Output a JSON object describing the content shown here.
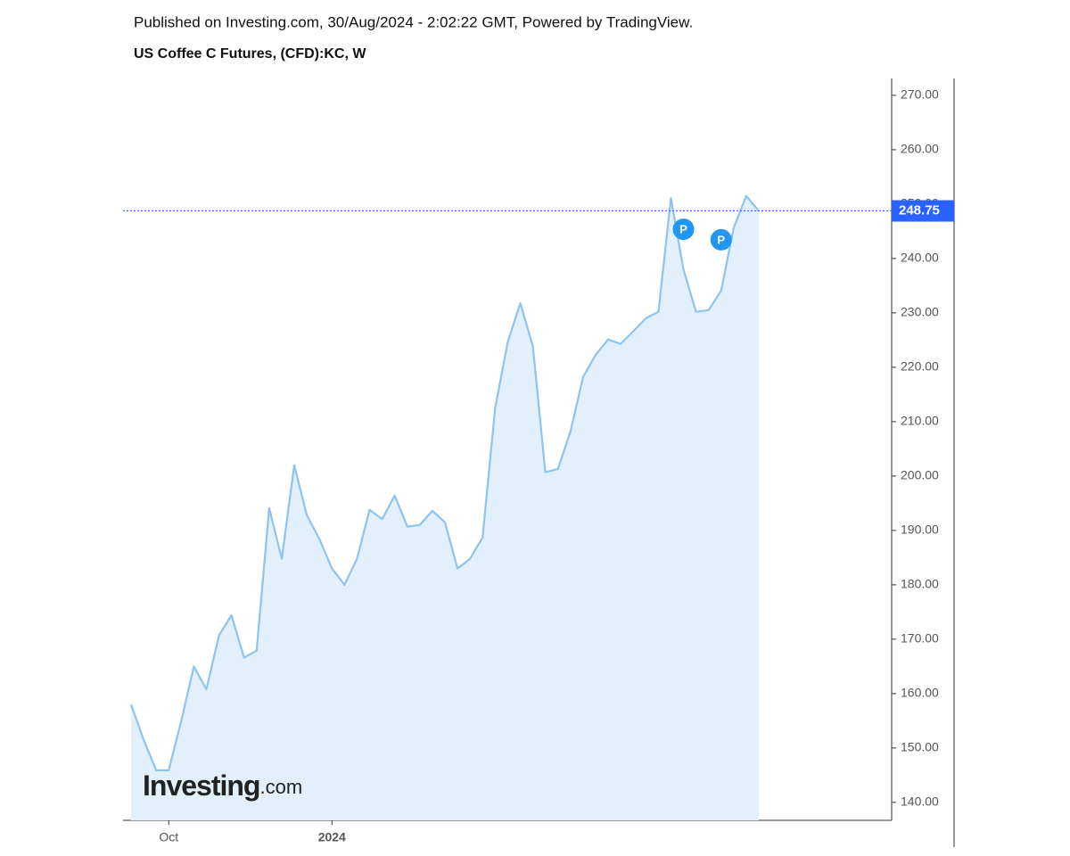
{
  "chart_data": {
    "type": "area",
    "publisher": "Published on Investing.com, 30/Aug/2024 - 2:02:22 GMT, Powered by TradingView.",
    "title": "US Coffee C Futures, (CFD):KC, W",
    "logo": "Investing",
    "logo_suffix": ".com",
    "categories": [
      null,
      null,
      null,
      "Oct",
      null,
      null,
      null,
      null,
      null,
      null,
      null,
      null,
      null,
      null,
      null,
      null,
      "2024",
      null,
      null,
      null,
      null,
      null,
      null,
      null,
      null,
      null,
      null,
      null,
      null,
      null,
      null,
      null,
      null,
      null,
      null,
      null,
      null,
      null,
      null,
      null,
      null,
      null,
      null,
      null,
      null,
      null,
      null,
      null,
      null,
      null,
      null
    ],
    "series": [
      {
        "color": "#8ec3ef",
        "fill": "#e1f0fa",
        "values": [
          158.0,
          151.5,
          145.9,
          145.9,
          155.0,
          165.0,
          160.8,
          170.7,
          174.4,
          166.6,
          167.9,
          194.1,
          184.8,
          202.0,
          192.8,
          188.4,
          183.0,
          180.0,
          184.8,
          193.8,
          192.1,
          196.4,
          190.7,
          191.0,
          193.6,
          191.5,
          183.0,
          184.8,
          188.7,
          212.5,
          224.6,
          231.8,
          223.9,
          200.7,
          201.3,
          208.2,
          218.2,
          222.3,
          225.1,
          224.3,
          226.6,
          229.0,
          230.2,
          251.1,
          238.0,
          230.2,
          230.5,
          234.1,
          245.6,
          251.5,
          248.75
        ]
      }
    ],
    "price_line": {
      "value": 248.75,
      "label": "248.75",
      "color": "#2962ff"
    },
    "annotations": [
      {
        "label": "P",
        "index": 44
      },
      {
        "label": "P",
        "index": 47
      }
    ],
    "ylim": [
      136.7,
      273.1
    ],
    "yticks": [
      {
        "value": 140,
        "label": "140.00"
      },
      {
        "value": 150,
        "label": "150.00"
      },
      {
        "value": 160,
        "label": "160.00"
      },
      {
        "value": 170,
        "label": "170.00"
      },
      {
        "value": 180,
        "label": "180.00"
      },
      {
        "value": 190,
        "label": "190.00"
      },
      {
        "value": 200,
        "label": "200.00"
      },
      {
        "value": 210,
        "label": "210.00"
      },
      {
        "value": 220,
        "label": "220.00"
      },
      {
        "value": 230,
        "label": "230.00"
      },
      {
        "value": 240,
        "label": "240.00"
      },
      {
        "value": 250,
        "label": "250.00"
      },
      {
        "value": 260,
        "label": "260.00"
      },
      {
        "value": 270,
        "label": "270.00"
      }
    ]
  }
}
